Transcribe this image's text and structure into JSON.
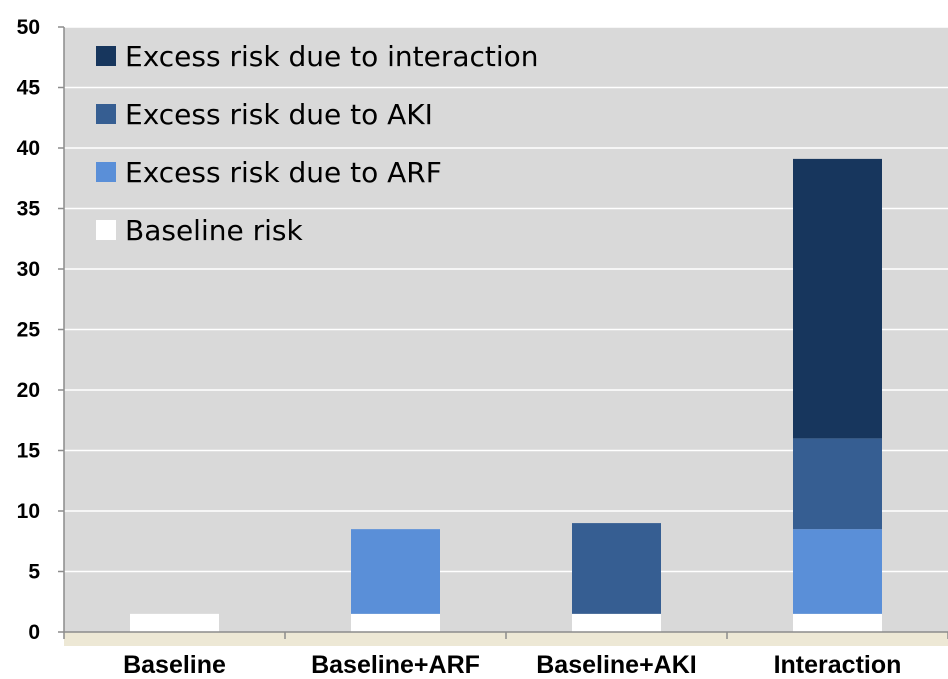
{
  "chart_data": {
    "type": "bar",
    "stacked": true,
    "categories": [
      "Baseline",
      "Baseline+ARF",
      "Baseline+AKI",
      "Interaction"
    ],
    "series": [
      {
        "name": "Baseline risk",
        "color": "#ffffff",
        "values": [
          1.5,
          1.5,
          1.5,
          1.5
        ]
      },
      {
        "name": "Excess risk due to ARF",
        "color": "#5a8fd8",
        "values": [
          0,
          7,
          0,
          7
        ]
      },
      {
        "name": "Excess risk due to AKI",
        "color": "#365e92",
        "values": [
          0,
          0,
          7.5,
          7.5
        ]
      },
      {
        "name": "Excess risk due to interaction",
        "color": "#17365d",
        "values": [
          0,
          0,
          0,
          23.1
        ]
      }
    ],
    "legend_order": [
      "Excess risk due to interaction",
      "Excess risk due to AKI",
      "Excess risk due to ARF",
      "Baseline risk"
    ],
    "yticks": [
      "0",
      "5",
      "10",
      "15",
      "20",
      "25",
      "30",
      "35",
      "40",
      "45",
      "50"
    ],
    "ylim": [
      0,
      50
    ],
    "grid": true,
    "legend_position": "top-left",
    "plot_background": "#d9d9d9",
    "floor_color": "#ede8d5",
    "title": "",
    "xlabel": "",
    "ylabel": ""
  }
}
